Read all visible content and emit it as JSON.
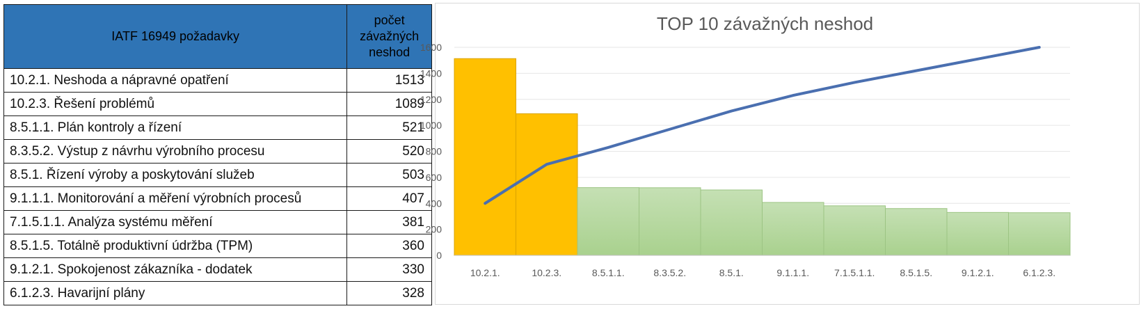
{
  "table": {
    "header_requirement": "IATF 16949 požadavky",
    "header_count_lines": [
      "počet",
      "závažných",
      "neshod"
    ],
    "rows": [
      {
        "label": "10.2.1. Neshoda a nápravné opatření",
        "count": "1513"
      },
      {
        "label": "10.2.3. Řešení problémů",
        "count": "1089"
      },
      {
        "label": "8.5.1.1. Plán kontroly a řízení",
        "count": "521"
      },
      {
        "label": "8.3.5.2. Výstup z návrhu výrobního procesu",
        "count": "520"
      },
      {
        "label": "8.5.1. Řízení výroby a poskytování služeb",
        "count": "503"
      },
      {
        "label": "9.1.1.1. Monitorování a měření výrobních procesů",
        "count": "407"
      },
      {
        "label": "7.1.5.1.1. Analýza systému měření",
        "count": "381"
      },
      {
        "label": "8.5.1.5. Totálně produktivní údržba (TPM)",
        "count": "360"
      },
      {
        "label": "9.1.2.1. Spokojenost zákazníka - dodatek",
        "count": "330"
      },
      {
        "label": "6.1.2.3. Havarijní plány",
        "count": "328"
      }
    ]
  },
  "chart_data": {
    "type": "bar",
    "title": "TOP 10 závažných neshod",
    "xlabel": "",
    "ylabel": "",
    "categories": [
      "10.2.1.",
      "10.2.3.",
      "8.5.1.1.",
      "8.3.5.2.",
      "8.5.1.",
      "9.1.1.1.",
      "7.1.5.1.1.",
      "8.5.1.5.",
      "9.1.2.1.",
      "6.1.2.3."
    ],
    "values": [
      1513,
      1089,
      521,
      520,
      503,
      407,
      381,
      360,
      330,
      328
    ],
    "highlight_count": 2,
    "colors": {
      "highlight": "#ffc000",
      "highlight_border": "#d9a300",
      "bar_top": "#c5e0b4",
      "bar_bottom": "#a9d18e",
      "line": "#4a6fb0",
      "grid": "#e6e6e6",
      "text": "#595959"
    },
    "line_series": {
      "type": "line",
      "values": [
        400,
        700,
        830,
        970,
        1110,
        1230,
        1330,
        1420,
        1510,
        1600
      ]
    },
    "ylim": [
      0,
      1600
    ],
    "yticks": [
      0,
      200,
      400,
      600,
      800,
      1000,
      1200,
      1400,
      1600
    ],
    "grid": true,
    "legend": "none"
  }
}
